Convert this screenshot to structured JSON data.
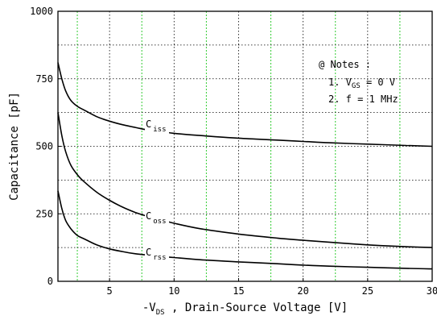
{
  "chart_data": {
    "type": "line",
    "xlabel_prefix": "-V",
    "xlabel_sub": "DS",
    "xlabel_suffix": " , Drain-Source Voltage [V]",
    "ylabel": "Capacitance  [pF]",
    "xlim": [
      1,
      30
    ],
    "ylim": [
      0,
      1000
    ],
    "x_ticks": [
      5,
      10,
      15,
      20,
      25,
      30
    ],
    "y_ticks": [
      0,
      250,
      500,
      750,
      1000
    ],
    "x_ticks_labeled": [
      "5",
      "10",
      "15",
      "20",
      "25",
      "30"
    ],
    "y_ticks_labeled": [
      "0",
      "250",
      "500",
      "750",
      "1000"
    ],
    "grid": true,
    "series": [
      {
        "name_main": "C",
        "name_sub": "iss",
        "label_x": 7.8,
        "label_y": 570,
        "points": [
          [
            1,
            810
          ],
          [
            1.3,
            750
          ],
          [
            1.6,
            705
          ],
          [
            2,
            670
          ],
          [
            2.5,
            648
          ],
          [
            3,
            635
          ],
          [
            4,
            610
          ],
          [
            5,
            593
          ],
          [
            6,
            580
          ],
          [
            7,
            570
          ],
          [
            8,
            560
          ],
          [
            9,
            555
          ],
          [
            10,
            548
          ],
          [
            12,
            540
          ],
          [
            15,
            530
          ],
          [
            18,
            523
          ],
          [
            20,
            518
          ],
          [
            22,
            513
          ],
          [
            25,
            508
          ],
          [
            28,
            503
          ],
          [
            30,
            500
          ]
        ]
      },
      {
        "name_main": "C",
        "name_sub": "oss",
        "label_x": 7.8,
        "label_y": 230,
        "points": [
          [
            1,
            625
          ],
          [
            1.3,
            540
          ],
          [
            1.6,
            480
          ],
          [
            2,
            430
          ],
          [
            2.5,
            395
          ],
          [
            3,
            370
          ],
          [
            4,
            330
          ],
          [
            5,
            300
          ],
          [
            6,
            275
          ],
          [
            7,
            255
          ],
          [
            8,
            240
          ],
          [
            9,
            228
          ],
          [
            10,
            215
          ],
          [
            12,
            195
          ],
          [
            15,
            175
          ],
          [
            18,
            160
          ],
          [
            20,
            152
          ],
          [
            22,
            145
          ],
          [
            25,
            135
          ],
          [
            28,
            128
          ],
          [
            30,
            125
          ]
        ]
      },
      {
        "name_main": "C",
        "name_sub": "rss",
        "label_x": 7.8,
        "label_y": 95,
        "points": [
          [
            1,
            335
          ],
          [
            1.3,
            270
          ],
          [
            1.6,
            225
          ],
          [
            2,
            195
          ],
          [
            2.5,
            170
          ],
          [
            3,
            158
          ],
          [
            4,
            135
          ],
          [
            5,
            120
          ],
          [
            6,
            110
          ],
          [
            7,
            102
          ],
          [
            8,
            97
          ],
          [
            9,
            92
          ],
          [
            10,
            88
          ],
          [
            12,
            80
          ],
          [
            15,
            72
          ],
          [
            18,
            65
          ],
          [
            20,
            60
          ],
          [
            22,
            56
          ],
          [
            25,
            52
          ],
          [
            28,
            48
          ],
          [
            30,
            46
          ]
        ]
      }
    ],
    "notes_title": "@ Notes :",
    "note1_prefix": "1. V",
    "note1_sub": "GS",
    "note1_suffix": " = 0 V",
    "note2": "2. f = 1 MHz",
    "colors": {
      "curve": "#000000",
      "grid_major": "#000000",
      "grid_minor": "#33cc33"
    }
  }
}
